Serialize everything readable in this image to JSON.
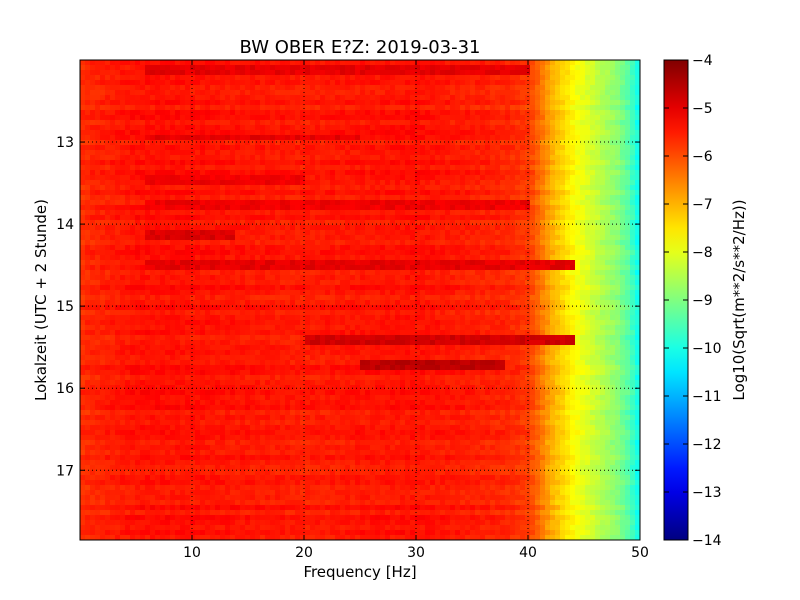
{
  "chart_data": {
    "type": "heatmap",
    "title": "BW OBER E?Z: 2019-03-31",
    "xlabel": "Frequency [Hz]",
    "ylabel": "Lokalzeit (UTC + 2 Stunde)",
    "xlim": [
      0,
      50
    ],
    "ylim": [
      17.85,
      12.0
    ],
    "x_ticks": [
      10,
      20,
      30,
      40,
      50
    ],
    "y_ticks": [
      13,
      14,
      15,
      16,
      17
    ],
    "grid": true,
    "colormap": "jet",
    "colorbar": {
      "label": "Log10(Sqrt(m**2/s**2/Hz))",
      "vmin": -14,
      "vmax": -4,
      "ticks": [
        -4,
        -5,
        -6,
        -7,
        -8,
        -9,
        -10,
        -11,
        -12,
        -13,
        -14
      ]
    },
    "frequency_profile": {
      "frequency_hz": [
        0,
        1,
        5,
        10,
        20,
        30,
        38,
        40,
        41,
        42,
        43,
        44,
        45,
        46,
        47,
        48,
        49,
        50
      ],
      "log10_value": [
        -5.7,
        -5.6,
        -5.4,
        -5.4,
        -5.5,
        -5.4,
        -5.6,
        -5.8,
        -6.3,
        -6.9,
        -7.3,
        -7.7,
        -8.0,
        -8.3,
        -8.6,
        -8.9,
        -9.4,
        -10.2
      ]
    },
    "strong_bands": [
      {
        "time": 12.1,
        "f_start": 6,
        "f_end": 40,
        "log10_value": -5.0
      },
      {
        "time": 12.95,
        "f_start": 6,
        "f_end": 25,
        "log10_value": -5.0
      },
      {
        "time": 13.45,
        "f_start": 6,
        "f_end": 20,
        "log10_value": -5.1
      },
      {
        "time": 13.75,
        "f_start": 6,
        "f_end": 40,
        "log10_value": -5.1
      },
      {
        "time": 14.15,
        "f_start": 6,
        "f_end": 14,
        "log10_value": -4.9
      },
      {
        "time": 14.5,
        "f_start": 6,
        "f_end": 44,
        "log10_value": -5.0
      },
      {
        "time": 15.4,
        "f_start": 20,
        "f_end": 44,
        "log10_value": -4.8
      },
      {
        "time": 15.7,
        "f_start": 25,
        "f_end": 38,
        "log10_value": -4.6
      }
    ]
  }
}
